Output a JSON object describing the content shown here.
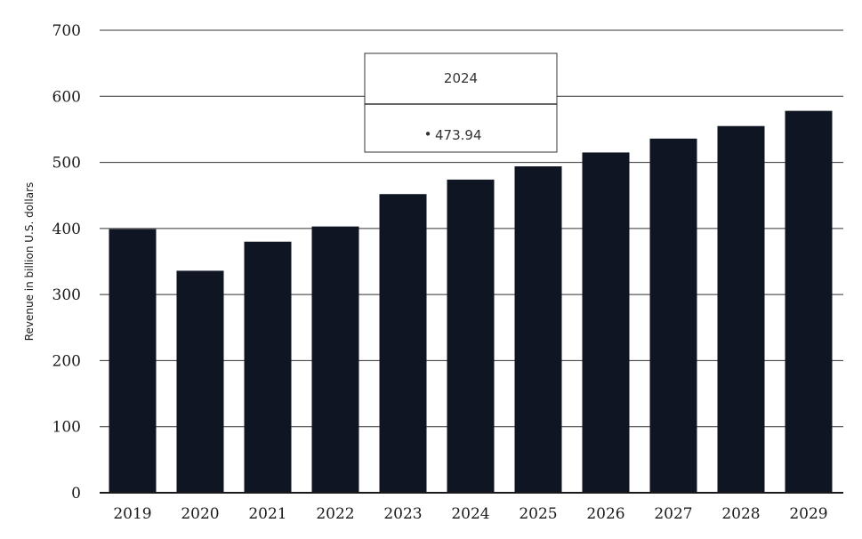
{
  "chart_data": {
    "type": "bar",
    "categories": [
      "2019",
      "2020",
      "2021",
      "2022",
      "2023",
      "2024",
      "2025",
      "2026",
      "2027",
      "2028",
      "2029"
    ],
    "values": [
      399,
      336,
      380,
      403,
      452,
      473.94,
      494,
      515,
      536,
      555,
      578
    ],
    "title": "",
    "xlabel": "",
    "ylabel": "Revenue in billion U.S. dollars",
    "ylim": [
      0,
      700
    ],
    "yticks": [
      0,
      100,
      200,
      300,
      400,
      500,
      600,
      700
    ],
    "grid": true,
    "bar_color": "#0f1522",
    "grid_color": "#333333"
  },
  "tooltip": {
    "category": "2024",
    "value": "473.94",
    "bullet": "•"
  }
}
